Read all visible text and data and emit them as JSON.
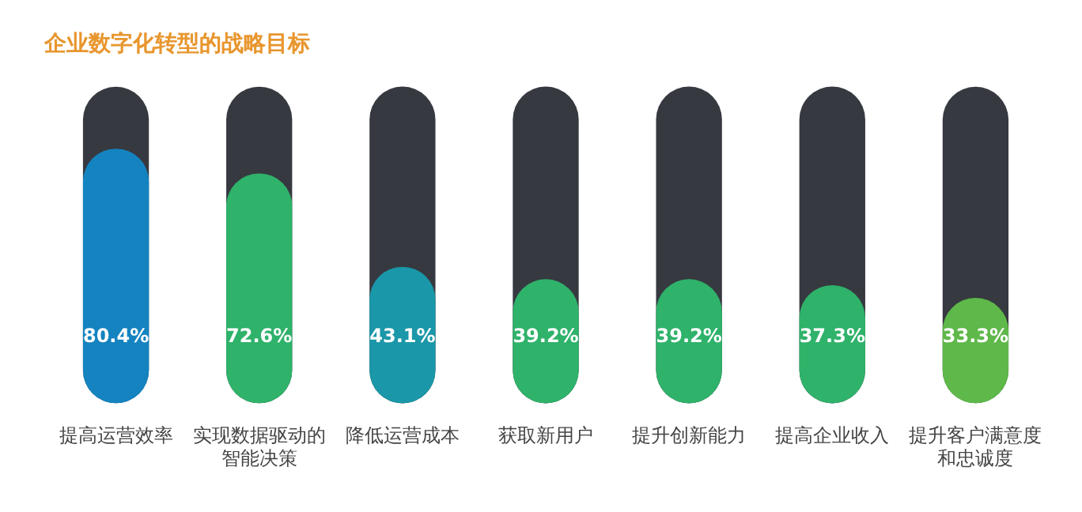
{
  "chart_data": {
    "type": "bar",
    "title": "企业数字化转型的战略目标",
    "categories": [
      "提高运营效率",
      "实现数据驱动的智能决策",
      "降低运营成本",
      "获取新用户",
      "提升创新能力",
      "提高企业收入",
      "提升客户满意度和忠诚度"
    ],
    "values": [
      80.4,
      72.6,
      43.1,
      39.2,
      39.2,
      37.3,
      33.3
    ],
    "colors": [
      "#1483c0",
      "#2fb26a",
      "#1a97a8",
      "#2fb26a",
      "#2fb26a",
      "#2fb26a",
      "#5fb84a"
    ],
    "value_labels": [
      "80.4%",
      "72.6%",
      "43.1%",
      "39.2%",
      "39.2%",
      "37.3%",
      "33.3%"
    ],
    "ylim": [
      0,
      100
    ],
    "tick_labels": "x",
    "grid": false,
    "legend": false
  }
}
